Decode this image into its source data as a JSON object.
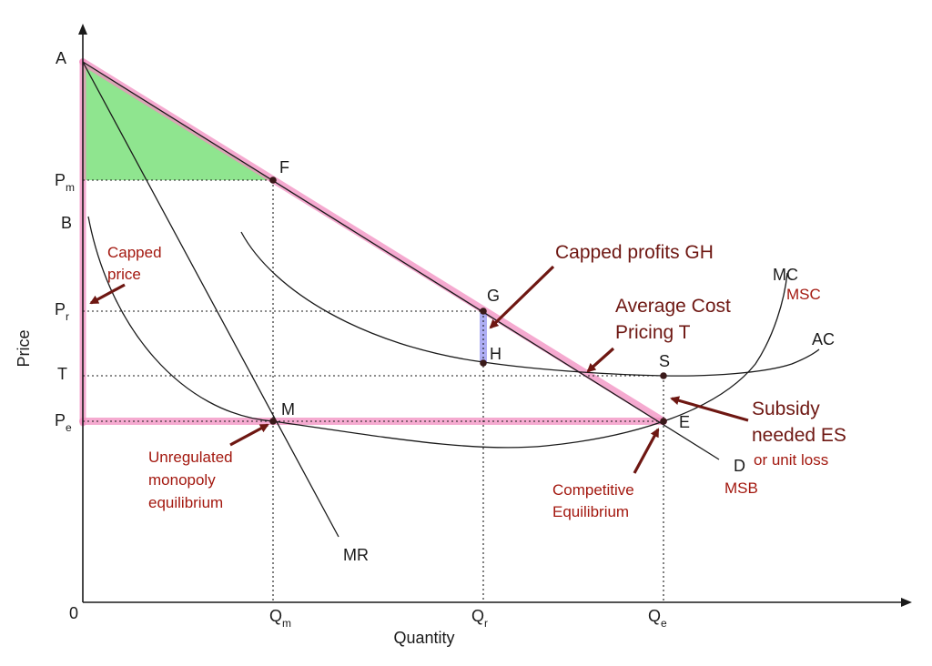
{
  "axes": {
    "x_label": "Quantity",
    "y_label": "Price",
    "origin": "0"
  },
  "y_ticks": {
    "a": "A",
    "pm": "P",
    "pm_sub": "m",
    "b": "B",
    "pr": "P",
    "pr_sub": "r",
    "t": "T",
    "pe": "P",
    "pe_sub": "e"
  },
  "x_ticks": {
    "qm": "Q",
    "qm_sub": "m",
    "qr": "Q",
    "qr_sub": "r",
    "qe": "Q",
    "qe_sub": "e"
  },
  "points": {
    "f": "F",
    "g": "G",
    "h": "H",
    "s": "S",
    "m": "M",
    "e": "E"
  },
  "curves": {
    "mr": "MR",
    "mc": "MC",
    "ac": "AC",
    "d": "D"
  },
  "annotations": {
    "msc": "MSC",
    "msb": "MSB",
    "capped_price_1": "Capped",
    "capped_price_2": "price",
    "capped_profits": "Capped profits GH",
    "acp_1": "Average Cost",
    "acp_2": "Pricing T",
    "subsidy_1": "Subsidy",
    "subsidy_2": "needed ES",
    "unit_loss": "or unit loss",
    "unreg_1": "Unregulated",
    "unreg_2": "monopoly",
    "unreg_3": "equilibrium",
    "comp_1": "Competitive",
    "comp_2": "Equilibrium"
  },
  "colors": {
    "consumer_surplus_fill": "#7be07b",
    "highlight_pink": "#f28dc0",
    "profit_band": "#8c8cf0",
    "annotation_red": "#a3180f",
    "arrow_dark_red": "#6e1712"
  }
}
